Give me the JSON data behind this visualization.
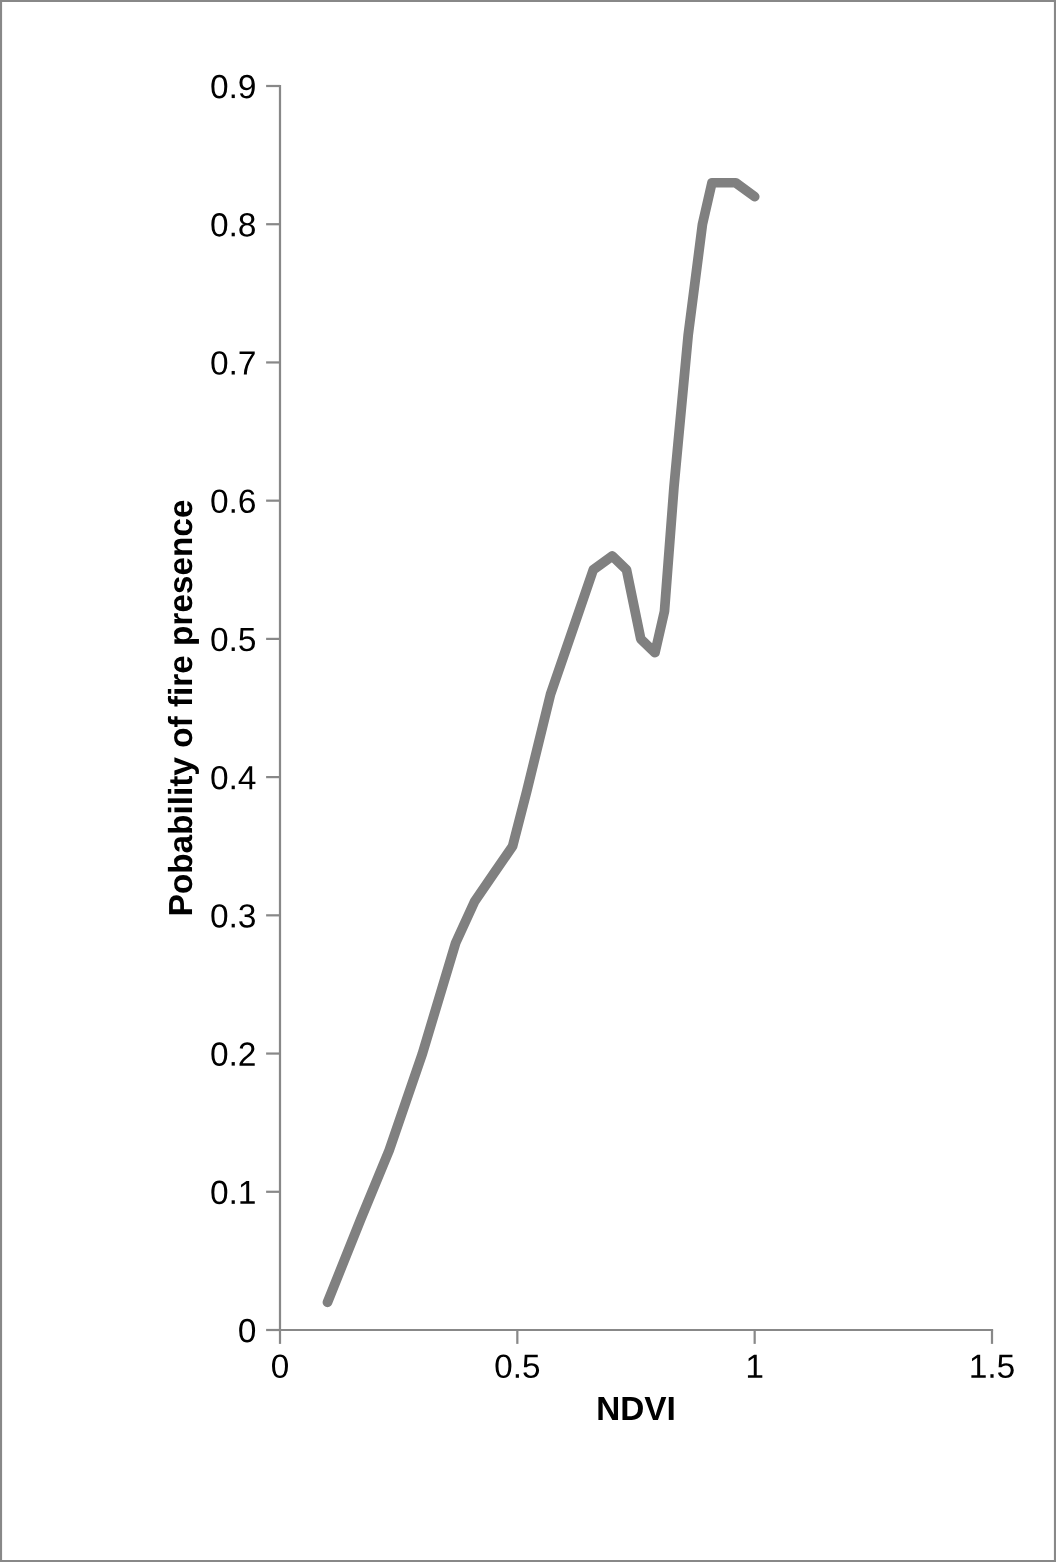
{
  "chart_data": {
    "type": "line",
    "xlabel": "NDVI",
    "ylabel": "Pobability of fire presence",
    "x": [
      0.1,
      0.17,
      0.23,
      0.3,
      0.37,
      0.41,
      0.45,
      0.49,
      0.52,
      0.57,
      0.62,
      0.66,
      0.7,
      0.73,
      0.76,
      0.79,
      0.81,
      0.83,
      0.86,
      0.89,
      0.91,
      0.96,
      1.0
    ],
    "series": [
      {
        "color": "#808080",
        "values": [
          0.02,
          0.08,
          0.13,
          0.2,
          0.28,
          0.31,
          0.33,
          0.35,
          0.39,
          0.46,
          0.51,
          0.55,
          0.56,
          0.55,
          0.5,
          0.49,
          0.52,
          0.61,
          0.72,
          0.8,
          0.83,
          0.83,
          0.82
        ]
      }
    ],
    "xlim": [
      0,
      1.5
    ],
    "xticks": [
      0,
      0.5,
      1,
      1.5
    ],
    "ylim": [
      0,
      0.9
    ],
    "yticks": [
      0,
      0.1,
      0.2,
      0.3,
      0.4,
      0.5,
      0.6,
      0.7,
      0.8,
      0.9
    ],
    "grid": false,
    "legend": false,
    "marker": "none",
    "line_style": "solid"
  }
}
